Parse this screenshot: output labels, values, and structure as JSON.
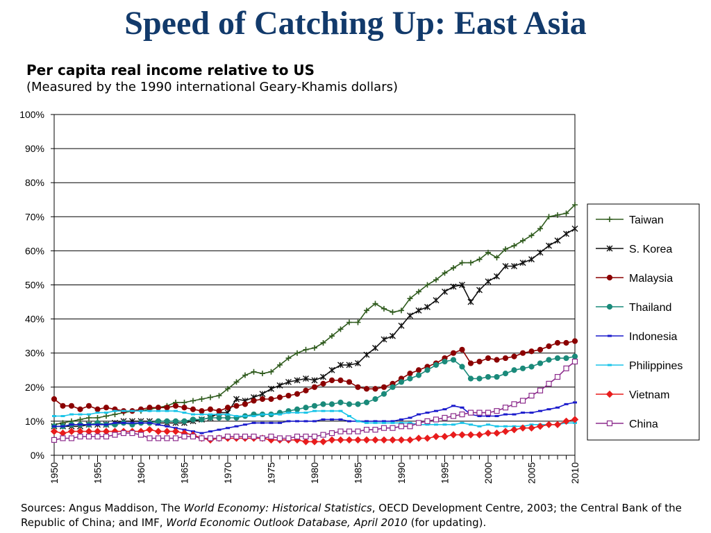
{
  "slide": {
    "title": "Speed of Catching Up: East Asia"
  },
  "chart_data": {
    "type": "line",
    "title": "Per capita real income relative to US",
    "subtitle": "(Measured by the 1990 international Geary-Khamis dollars)",
    "xlabel": "",
    "ylabel": "",
    "xlim": [
      1950,
      2010
    ],
    "ylim": [
      0,
      100
    ],
    "x_ticks": [
      1950,
      1955,
      1960,
      1965,
      1970,
      1975,
      1980,
      1985,
      1990,
      1995,
      2000,
      2005,
      2010
    ],
    "y_ticks": [
      "0%",
      "10%",
      "20%",
      "30%",
      "40%",
      "50%",
      "60%",
      "70%",
      "80%",
      "90%",
      "100%"
    ],
    "grid": "horizontal",
    "legend_position": "right",
    "x": [
      1950,
      1951,
      1952,
      1953,
      1954,
      1955,
      1956,
      1957,
      1958,
      1959,
      1960,
      1961,
      1962,
      1963,
      1964,
      1965,
      1966,
      1967,
      1968,
      1969,
      1970,
      1971,
      1972,
      1973,
      1974,
      1975,
      1976,
      1977,
      1978,
      1979,
      1980,
      1981,
      1982,
      1983,
      1984,
      1985,
      1986,
      1987,
      1988,
      1989,
      1990,
      1991,
      1992,
      1993,
      1994,
      1995,
      1996,
      1997,
      1998,
      1999,
      2000,
      2001,
      2002,
      2003,
      2004,
      2005,
      2006,
      2007,
      2008,
      2009,
      2010
    ],
    "series": [
      {
        "name": "Taiwan",
        "color": "#2e5a1c",
        "marker": "plus",
        "values": [
          9,
          9.5,
          10,
          10.5,
          11,
          11,
          11.5,
          12,
          12.5,
          13,
          13,
          13.5,
          14,
          14.5,
          15.5,
          15.5,
          16,
          16.5,
          17,
          17.5,
          19.5,
          21.5,
          23.5,
          24.5,
          24,
          24.5,
          26.5,
          28.5,
          30,
          31,
          31.5,
          33,
          35,
          37,
          39,
          39,
          42.5,
          44.5,
          43,
          42,
          42.5,
          46,
          48,
          50,
          51.5,
          53.5,
          55,
          56.5,
          56.5,
          57.5,
          59.5,
          58,
          60.5,
          61.5,
          63,
          64.5,
          66.5,
          70,
          70.5,
          71,
          73.5
        ]
      },
      {
        "name": "S. Korea",
        "color": "#111111",
        "marker": "star",
        "values": [
          8.5,
          8.5,
          8.5,
          8.5,
          9,
          9,
          9,
          9.5,
          10,
          10,
          10,
          10,
          9.5,
          9.5,
          9.5,
          9.5,
          10,
          10.5,
          11,
          12.5,
          12.5,
          16.5,
          16,
          17,
          18,
          19.5,
          20.5,
          21.5,
          22,
          22.5,
          22,
          23,
          25,
          26.5,
          26.5,
          27,
          29.5,
          31.5,
          34,
          35,
          38,
          41,
          42.5,
          43.5,
          45.5,
          48,
          49.5,
          50,
          45,
          48.5,
          51,
          52.5,
          55.5,
          55.5,
          56.5,
          57.5,
          59.5,
          61.5,
          63,
          65,
          66.5
        ]
      },
      {
        "name": "Malaysia",
        "color": "#8b0000",
        "marker": "circle",
        "values": [
          16.5,
          14.5,
          14.5,
          13.5,
          14.5,
          13.5,
          14,
          13.5,
          13,
          13,
          13.5,
          14,
          14,
          14,
          14.5,
          14,
          13.5,
          13,
          13.5,
          13,
          14,
          14.5,
          15,
          16,
          16.5,
          16.5,
          17,
          17.5,
          18,
          19,
          20,
          21,
          22,
          22,
          21.5,
          20,
          19.5,
          19.5,
          20,
          21,
          22.5,
          24,
          25,
          26,
          27,
          28.5,
          30,
          31,
          27,
          27.5,
          28.5,
          28,
          28.5,
          29,
          30,
          30.5,
          31,
          32,
          33,
          33,
          33.5
        ]
      },
      {
        "name": "Thailand",
        "color": "#1a8a7a",
        "marker": "circle",
        "values": [
          8.5,
          8.5,
          9,
          9,
          9,
          9.5,
          9,
          9,
          9.5,
          9,
          9.5,
          9.5,
          10,
          10,
          10,
          10,
          10.5,
          10.5,
          11,
          11,
          11,
          11,
          11.5,
          12,
          12,
          12,
          12.5,
          13,
          13.5,
          14,
          14.5,
          15,
          15,
          15.5,
          15,
          15,
          15.5,
          16.5,
          18,
          20,
          21.5,
          22.5,
          23.5,
          25,
          26.5,
          27.5,
          28,
          26,
          22.5,
          22.5,
          23,
          23,
          24,
          25,
          25.5,
          26,
          27,
          28,
          28.5,
          28.5,
          29
        ]
      },
      {
        "name": "Indonesia",
        "color": "#1a1acc",
        "marker": "dash",
        "values": [
          8.5,
          8.5,
          9,
          9,
          9,
          9,
          9,
          9.5,
          9.5,
          9.5,
          9.5,
          9.5,
          9,
          8.5,
          8,
          7.5,
          7,
          6.5,
          7,
          7.5,
          8,
          8.5,
          9,
          9.5,
          9.5,
          9.5,
          9.5,
          10,
          10,
          10,
          10,
          10.5,
          10.5,
          10.5,
          10,
          10,
          10,
          10,
          10,
          10,
          10.5,
          11,
          12,
          12.5,
          13,
          13.5,
          14.5,
          14,
          12,
          11.5,
          11.5,
          11.5,
          12,
          12,
          12.5,
          12.5,
          13,
          13.5,
          14,
          15,
          15.5
        ]
      },
      {
        "name": "Philippines",
        "color": "#19c4e8",
        "marker": "dash",
        "values": [
          11.5,
          11.5,
          12,
          12,
          12,
          12.5,
          12.5,
          13,
          13,
          13,
          13,
          13,
          13,
          13,
          13,
          12.5,
          12,
          12,
          12,
          12,
          12,
          11.5,
          11.5,
          11.5,
          12,
          12,
          12,
          12.5,
          12.5,
          12.5,
          13,
          13,
          13,
          13,
          11.5,
          10,
          9.5,
          9.5,
          9.5,
          9.5,
          9.5,
          9.5,
          9,
          9,
          9,
          9,
          9,
          9.5,
          9,
          8.5,
          9,
          8.5,
          8.5,
          8.5,
          8.5,
          9,
          9,
          9,
          9,
          9.5,
          9.5
        ]
      },
      {
        "name": "Vietnam",
        "color": "#e81c1c",
        "marker": "diamond",
        "values": [
          7,
          6.5,
          7,
          7,
          7,
          7,
          7,
          7,
          7,
          7,
          7,
          7.5,
          7,
          7,
          7,
          6.5,
          6,
          5,
          4.5,
          5,
          5,
          5,
          5,
          5,
          5,
          4.5,
          4.5,
          4.5,
          4.5,
          4,
          4,
          4,
          4.5,
          4.5,
          4.5,
          4.5,
          4.5,
          4.5,
          4.5,
          4.5,
          4.5,
          4.5,
          5,
          5,
          5.5,
          5.5,
          6,
          6,
          6,
          6,
          6.5,
          6.5,
          7,
          7.5,
          8,
          8,
          8.5,
          9,
          9,
          10,
          10.5
        ]
      },
      {
        "name": "China",
        "color": "#8b2a8b",
        "marker": "square",
        "values": [
          4.5,
          5,
          5,
          5.5,
          5.5,
          5.5,
          5.5,
          6,
          6.5,
          6.5,
          6,
          5,
          5,
          5,
          5,
          5.5,
          5.5,
          5,
          5,
          5,
          5.5,
          5.5,
          5.5,
          5.5,
          5,
          5.5,
          5,
          5,
          5.5,
          5.5,
          5.5,
          6,
          6.5,
          7,
          7,
          7,
          7.5,
          7.5,
          8,
          8,
          8.5,
          8.5,
          9.5,
          10,
          10.5,
          11,
          11.5,
          12,
          12.5,
          12.5,
          12.5,
          13,
          14,
          15,
          16,
          17.5,
          19,
          21,
          23,
          25.5,
          27.5
        ]
      }
    ]
  },
  "sources": {
    "prefix": "Sources: Angus Maddison, The ",
    "book_title": "World Economy: Historical Statistics",
    "middle": ", OECD Development Centre, 2003; the Central Bank of the Republic of China; and IMF, ",
    "database": "World Economic Outlook Database, April 2010",
    "suffix": " (for updating)."
  }
}
